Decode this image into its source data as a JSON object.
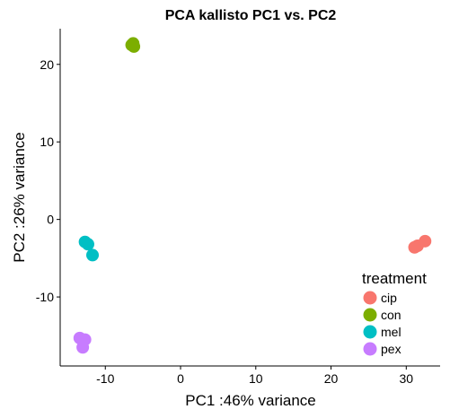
{
  "chart_data": {
    "type": "scatter",
    "title": "PCA kallisto PC1 vs. PC2",
    "xlabel": "PC1 :46% variance",
    "ylabel": "PC2 :26% variance",
    "xlim": [
      -16,
      34.5
    ],
    "ylim": [
      -18.9,
      24.6
    ],
    "xticks": [
      -10,
      0,
      10,
      20,
      30
    ],
    "yticks": [
      -10,
      0,
      10,
      20
    ],
    "grid": false,
    "legend": {
      "title": "treatment",
      "placement": "right"
    },
    "series": [
      {
        "name": "cip",
        "color": "#F8766D",
        "points": [
          [
            31.1,
            -3.6
          ],
          [
            31.5,
            -3.4
          ],
          [
            32.5,
            -2.8
          ]
        ]
      },
      {
        "name": "con",
        "color": "#7CAE00",
        "points": [
          [
            -6.3,
            22.7
          ],
          [
            -6.2,
            22.3
          ],
          [
            -6.5,
            22.5
          ]
        ]
      },
      {
        "name": "mel",
        "color": "#00BFC4",
        "points": [
          [
            -12.7,
            -2.9
          ],
          [
            -12.3,
            -3.2
          ],
          [
            -11.7,
            -4.6
          ]
        ]
      },
      {
        "name": "pex",
        "color": "#C77CFF",
        "points": [
          [
            -13.4,
            -15.3
          ],
          [
            -12.7,
            -15.5
          ],
          [
            -13.0,
            -16.5
          ]
        ]
      }
    ]
  }
}
